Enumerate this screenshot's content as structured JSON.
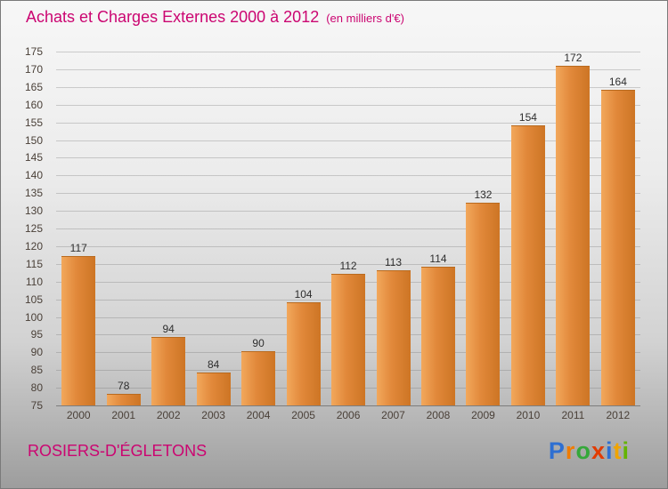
{
  "header": {
    "title": "Achats et Charges Externes 2000 à 2012",
    "subtitle": "(en milliers d'€)"
  },
  "chart_data": {
    "type": "bar",
    "title": "Achats et Charges Externes 2000 à 2012",
    "subtitle": "(en milliers d'€)",
    "categories": [
      "2000",
      "2001",
      "2002",
      "2003",
      "2004",
      "2005",
      "2006",
      "2007",
      "2008",
      "2009",
      "2010",
      "2011",
      "2012"
    ],
    "values": [
      117,
      78,
      94,
      84,
      90,
      104,
      112,
      113,
      114,
      132,
      154,
      172,
      164
    ],
    "xlabel": "",
    "ylabel": "",
    "ylim": [
      75,
      175
    ],
    "ytick_step": 5,
    "grid": true,
    "legend": false,
    "bar_color": "#e1883a"
  },
  "footer": {
    "company": "ROSIERS-D'ÉGLETONS",
    "logo_letters": [
      {
        "ch": "P",
        "color": "#2e6fd2"
      },
      {
        "ch": "r",
        "color": "#f07c00"
      },
      {
        "ch": "o",
        "color": "#35a83a"
      },
      {
        "ch": "x",
        "color": "#e23b00"
      },
      {
        "ch": "i",
        "color": "#2e6fd2"
      },
      {
        "ch": "t",
        "color": "#f0a400"
      },
      {
        "ch": "i",
        "color": "#64b400"
      }
    ]
  },
  "colors": {
    "title": "#cb0571",
    "bar_gradient_light": "#f2a85c",
    "bar_gradient_dark": "#cd7524"
  }
}
